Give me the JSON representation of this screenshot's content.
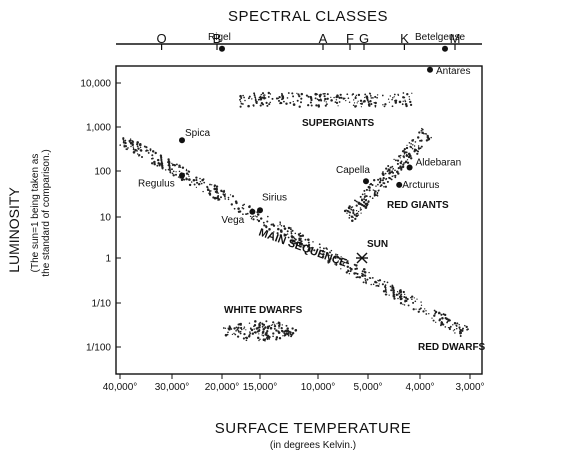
{
  "top_axis": {
    "title": "SPECTRAL CLASSES",
    "classes": [
      {
        "label": "O",
        "temp": 32000
      },
      {
        "label": "B",
        "temp": 21000
      },
      {
        "label": "A",
        "temp": 9500
      },
      {
        "label": "F",
        "temp": 6800
      },
      {
        "label": "G",
        "temp": 5400
      },
      {
        "label": "K",
        "temp": 4300
      },
      {
        "label": "M",
        "temp": 3300
      }
    ]
  },
  "y_axis": {
    "title": "LUMINOSITY",
    "subtitle_line1": "(The sun=1 being taken as",
    "subtitle_line2": "the standard of comparison.)",
    "ticks": [
      {
        "label": "10,000",
        "value": 10000
      },
      {
        "label": "1,000",
        "value": 1000
      },
      {
        "label": "100",
        "value": 100
      },
      {
        "label": "10",
        "value": 10
      },
      {
        "label": "1",
        "value": 1
      },
      {
        "label": "1/10",
        "value": 0.1
      },
      {
        "label": "1/100",
        "value": 0.01
      }
    ]
  },
  "x_axis": {
    "title": "SURFACE TEMPERATURE",
    "subtitle": "(in degrees Kelvin.)",
    "ticks": [
      {
        "label": "40,000°",
        "value": 40000
      },
      {
        "label": "30,000°",
        "value": 30000
      },
      {
        "label": "20,000°",
        "value": 20000
      },
      {
        "label": "15,000°",
        "value": 15000
      },
      {
        "label": "10,000°",
        "value": 10000
      },
      {
        "label": "5,000°",
        "value": 5000
      },
      {
        "label": "4,000°",
        "value": 4000
      },
      {
        "label": "3,000°",
        "value": 3000
      }
    ]
  },
  "stars": [
    {
      "name": "Rigel",
      "temp": 20000,
      "lum": 60000
    },
    {
      "name": "Betelgeuse",
      "temp": 3500,
      "lum": 60000
    },
    {
      "name": "Antares",
      "temp": 3800,
      "lum": 20000
    },
    {
      "name": "Spica",
      "temp": 28000,
      "lum": 500
    },
    {
      "name": "Regulus",
      "temp": 28000,
      "lum": 80
    },
    {
      "name": "Aldebaran",
      "temp": 4200,
      "lum": 120
    },
    {
      "name": "Capella",
      "temp": 5200,
      "lum": 60
    },
    {
      "name": "Arcturus",
      "temp": 4400,
      "lum": 50
    },
    {
      "name": "Sirius",
      "temp": 15000,
      "lum": 14
    },
    {
      "name": "Vega",
      "temp": 16000,
      "lum": 13
    },
    {
      "name": "SUN",
      "temp": 5600,
      "lum": 1
    }
  ],
  "regions": {
    "supergiants": "SUPERGIANTS",
    "main_sequence": "MAIN SEQUENCE",
    "red_giants": "RED GIANTS",
    "white_dwarfs": "WHITE DWARFS",
    "red_dwarfs": "RED DWARFS"
  }
}
